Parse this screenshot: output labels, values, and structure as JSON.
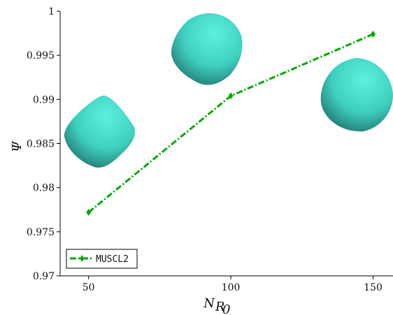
{
  "chart_data": {
    "type": "line",
    "title": "",
    "xlabel": "N",
    "xlabel_sub": "R",
    "xlabel_subsub": "0",
    "ylabel": "Ψ",
    "xlim": [
      40,
      157
    ],
    "ylim": [
      0.97,
      1.0
    ],
    "x_ticks": [
      50,
      100,
      150
    ],
    "x_tick_labels": [
      "50",
      "100",
      "150"
    ],
    "y_ticks": [
      0.97,
      0.975,
      0.98,
      0.985,
      0.99,
      0.995,
      1.0
    ],
    "y_tick_labels": [
      "0.97",
      "0.975",
      "0.98",
      "0.985",
      "0.99",
      "0.995",
      "1"
    ],
    "grid": false,
    "legend_placement": "bottom-left",
    "x": [
      50,
      100,
      150
    ],
    "series": [
      {
        "name": "MUSCL2",
        "values": [
          0.9772,
          0.9904,
          0.9974
        ],
        "color": "#00aa00",
        "marker": "diamond",
        "line_style": "dash-dot"
      }
    ],
    "insets": [
      {
        "name": "droplet-shape-50",
        "depicts": 50,
        "color": "#3fcfbf"
      },
      {
        "name": "droplet-shape-100",
        "depicts": 100,
        "color": "#3fcfbf"
      },
      {
        "name": "droplet-shape-150",
        "depicts": 150,
        "color": "#3fcfbf"
      }
    ]
  }
}
